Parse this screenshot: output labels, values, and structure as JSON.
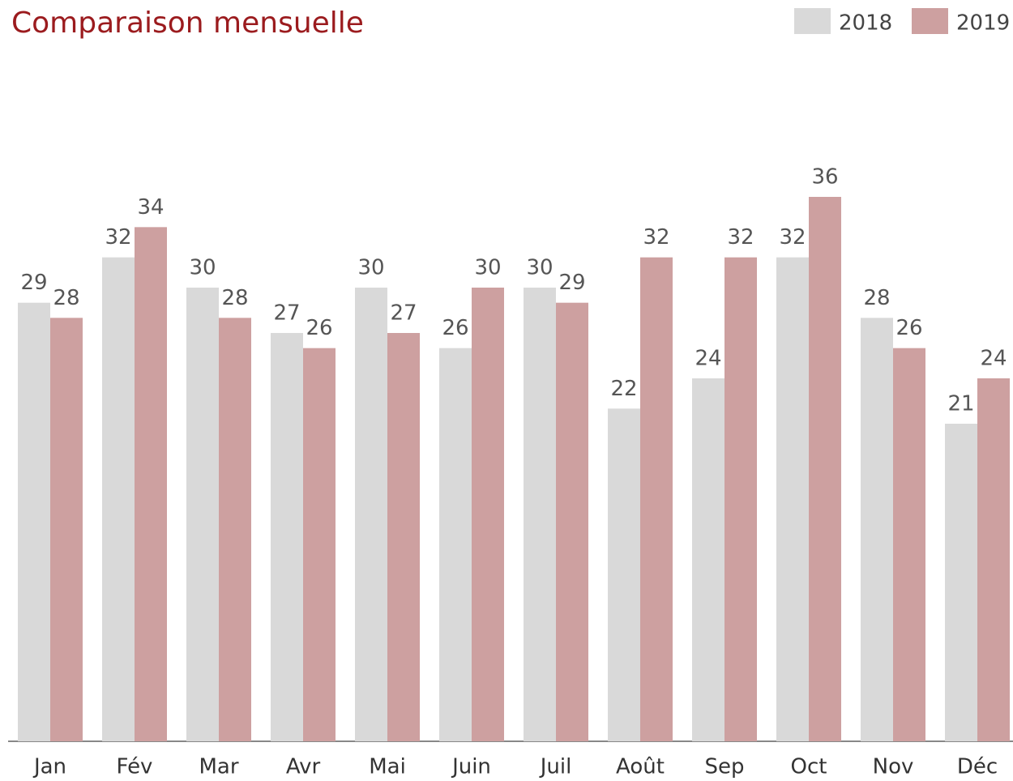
{
  "chart_data": {
    "type": "bar",
    "title": "Comparaison mensuelle",
    "categories": [
      "Jan",
      "Fév",
      "Mar",
      "Avr",
      "Mai",
      "Juin",
      "Juil",
      "Août",
      "Sep",
      "Oct",
      "Nov",
      "Déc"
    ],
    "series": [
      {
        "name": "2018",
        "color": "#d9d9d9",
        "values": [
          29,
          32,
          30,
          27,
          30,
          26,
          30,
          22,
          24,
          32,
          28,
          21
        ]
      },
      {
        "name": "2019",
        "color": "#cda0a0",
        "values": [
          28,
          34,
          28,
          26,
          27,
          30,
          29,
          32,
          32,
          36,
          26,
          24
        ]
      }
    ],
    "legend": "top-right"
  }
}
